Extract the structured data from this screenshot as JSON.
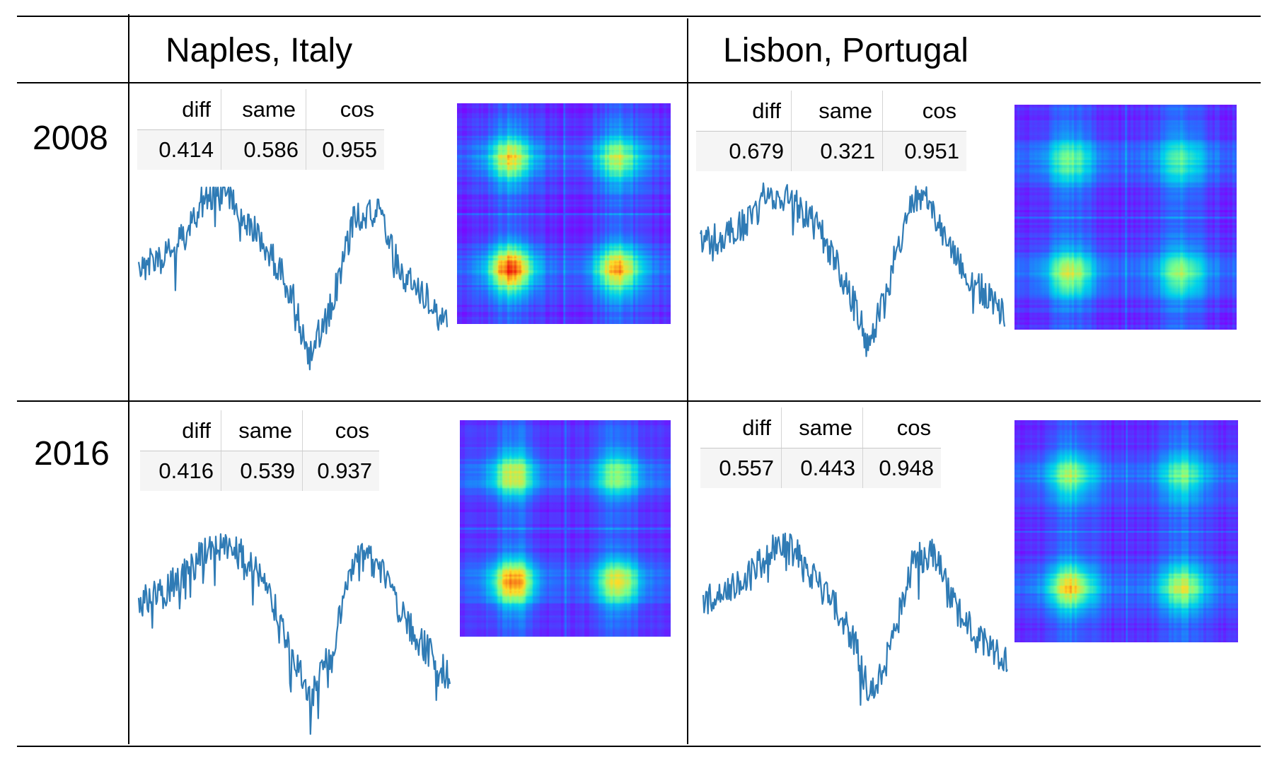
{
  "header": {
    "row_label": "",
    "cities": [
      "Naples, Italy",
      "Lisbon, Portugal"
    ]
  },
  "stat_columns": [
    "diff",
    "same",
    "cos"
  ],
  "rows": [
    {
      "year": "2008",
      "cells": [
        {
          "city": "Naples, Italy",
          "diff": "0.414",
          "same": "0.586",
          "cos": "0.955"
        },
        {
          "city": "Lisbon, Portugal",
          "diff": "0.679",
          "same": "0.321",
          "cos": "0.951"
        }
      ]
    },
    {
      "year": "2016",
      "cells": [
        {
          "city": "Naples, Italy",
          "diff": "0.416",
          "same": "0.539",
          "cos": "0.937"
        },
        {
          "city": "Lisbon, Portugal",
          "diff": "0.557",
          "same": "0.443",
          "cos": "0.948"
        }
      ]
    }
  ],
  "colors": {
    "series": "#2f7bb5",
    "heatmap_low": "#7b1fff",
    "heatmap_high": "#e8120c"
  }
}
